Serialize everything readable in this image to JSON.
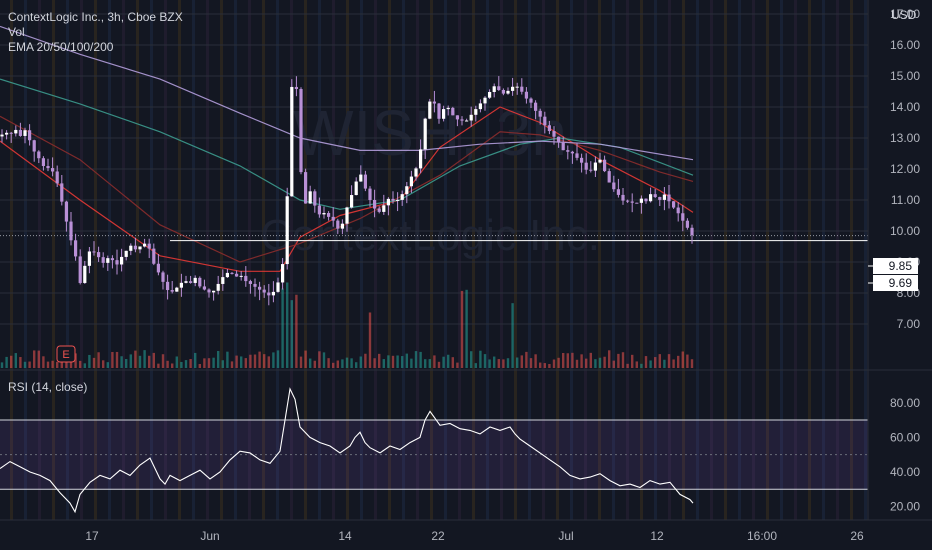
{
  "header": {
    "symbol": "ContextLogic Inc., 3h, Cboe BZX",
    "vol_label": "Vol",
    "ema_label": "EMA 20/50/100/200",
    "currency": "USD"
  },
  "watermark": {
    "ticker": "WISH, 3h",
    "name": "ContextLogic Inc."
  },
  "rsi_header": "RSI (14, close)",
  "price_tags": {
    "current": "9.85",
    "level": "9.69"
  },
  "earnings_marker": "E",
  "colors": {
    "background": "#131722",
    "up": "#26a69a",
    "down": "#ef5350",
    "candle_body": "#b990d6",
    "ema20": "#e53935",
    "ema50": "#8b2c2c",
    "ema100": "#3c9b8e",
    "ema200": "#b39ddb",
    "rsi_line": "#ffffff",
    "rsi_band": "#7e57c2"
  },
  "chart_data": [
    {
      "type": "candlestick",
      "title": "ContextLogic Inc., 3h, Cboe BZX",
      "x_tick_labels": [
        "17",
        "Jun",
        "14",
        "22",
        "Jul",
        "12",
        "16:00",
        "26"
      ],
      "y_ticks": [
        "17.00",
        "16.00",
        "15.00",
        "14.00",
        "13.00",
        "12.00",
        "11.00",
        "10.00",
        "9.00",
        "8.00",
        "7.00"
      ],
      "ylim": [
        6.6,
        17.8
      ],
      "y_unit": "USD",
      "horizontal_level": 9.69,
      "last_price": 9.85,
      "price_path": [
        [
          0,
          13.05
        ],
        [
          5,
          13.2
        ],
        [
          10,
          13.1
        ],
        [
          15,
          13.3
        ],
        [
          20,
          13.05
        ],
        [
          25,
          13.25
        ],
        [
          30,
          12.9
        ],
        [
          35,
          12.5
        ],
        [
          40,
          12.3
        ],
        [
          45,
          12.0
        ],
        [
          50,
          12.05
        ],
        [
          55,
          11.8
        ],
        [
          60,
          11.2
        ],
        [
          65,
          10.5
        ],
        [
          70,
          9.8
        ],
        [
          75,
          9.3
        ],
        [
          80,
          8.3
        ],
        [
          85,
          8.9
        ],
        [
          90,
          9.4
        ],
        [
          95,
          9.3
        ],
        [
          100,
          9.1
        ],
        [
          105,
          8.9
        ],
        [
          110,
          9.3
        ],
        [
          115,
          8.8
        ],
        [
          120,
          9.1
        ],
        [
          125,
          9.3
        ],
        [
          130,
          9.55
        ],
        [
          135,
          9.4
        ],
        [
          140,
          9.5
        ],
        [
          145,
          9.6
        ],
        [
          150,
          9.4
        ],
        [
          155,
          8.8
        ],
        [
          160,
          8.6
        ],
        [
          165,
          8.2
        ],
        [
          170,
          8.0
        ],
        [
          175,
          8.1
        ],
        [
          180,
          8.3
        ],
        [
          185,
          8.4
        ],
        [
          190,
          8.3
        ],
        [
          195,
          8.5
        ],
        [
          200,
          8.2
        ],
        [
          205,
          8.1
        ],
        [
          210,
          8.0
        ],
        [
          215,
          8.1
        ],
        [
          220,
          8.4
        ],
        [
          225,
          8.6
        ],
        [
          230,
          8.7
        ],
        [
          235,
          8.5
        ],
        [
          240,
          8.6
        ],
        [
          245,
          8.4
        ],
        [
          250,
          8.3
        ],
        [
          255,
          8.2
        ],
        [
          260,
          8.1
        ],
        [
          265,
          8.0
        ],
        [
          270,
          7.9
        ],
        [
          275,
          8.1
        ],
        [
          280,
          8.5
        ],
        [
          283,
          9.0
        ],
        [
          286,
          10.2
        ],
        [
          289,
          12.5
        ],
        [
          292,
          14.8
        ],
        [
          295,
          15.7
        ],
        [
          298,
          13.3
        ],
        [
          301,
          11.9
        ],
        [
          304,
          11.1
        ],
        [
          307,
          10.7
        ],
        [
          310,
          11.3
        ],
        [
          315,
          10.8
        ],
        [
          320,
          10.5
        ],
        [
          325,
          10.6
        ],
        [
          330,
          10.4
        ],
        [
          335,
          10.3
        ],
        [
          340,
          9.9
        ],
        [
          345,
          10.6
        ],
        [
          350,
          11.0
        ],
        [
          355,
          11.5
        ],
        [
          360,
          11.9
        ],
        [
          365,
          11.4
        ],
        [
          370,
          11.0
        ],
        [
          375,
          10.7
        ],
        [
          380,
          10.6
        ],
        [
          385,
          10.9
        ],
        [
          390,
          11.1
        ],
        [
          395,
          10.9
        ],
        [
          400,
          11.1
        ],
        [
          405,
          11.3
        ],
        [
          410,
          11.7
        ],
        [
          415,
          11.9
        ],
        [
          420,
          12.5
        ],
        [
          425,
          13.6
        ],
        [
          430,
          14.2
        ],
        [
          435,
          14.1
        ],
        [
          440,
          13.5
        ],
        [
          445,
          14.1
        ],
        [
          450,
          13.9
        ],
        [
          455,
          13.6
        ],
        [
          460,
          13.6
        ],
        [
          465,
          13.5
        ],
        [
          470,
          13.7
        ],
        [
          475,
          13.9
        ],
        [
          480,
          14.1
        ],
        [
          485,
          14.3
        ],
        [
          490,
          14.5
        ],
        [
          495,
          14.7
        ],
        [
          500,
          14.5
        ],
        [
          505,
          14.4
        ],
        [
          510,
          14.6
        ],
        [
          515,
          14.7
        ],
        [
          520,
          14.6
        ],
        [
          525,
          14.3
        ],
        [
          530,
          14.2
        ],
        [
          535,
          13.9
        ],
        [
          540,
          13.7
        ],
        [
          545,
          13.4
        ],
        [
          550,
          13.2
        ],
        [
          555,
          13.0
        ],
        [
          560,
          12.8
        ],
        [
          565,
          12.5
        ],
        [
          570,
          12.6
        ],
        [
          575,
          12.4
        ],
        [
          580,
          12.3
        ],
        [
          585,
          12.0
        ],
        [
          590,
          11.9
        ],
        [
          595,
          12.2
        ],
        [
          600,
          12.3
        ],
        [
          605,
          11.9
        ],
        [
          610,
          11.5
        ],
        [
          615,
          11.3
        ],
        [
          620,
          11.1
        ],
        [
          625,
          10.9
        ],
        [
          630,
          11.0
        ],
        [
          635,
          10.8
        ],
        [
          640,
          11.1
        ],
        [
          645,
          10.9
        ],
        [
          650,
          11.2
        ],
        [
          655,
          11.1
        ],
        [
          660,
          11.0
        ],
        [
          665,
          11.2
        ],
        [
          670,
          10.9
        ],
        [
          675,
          10.7
        ],
        [
          680,
          10.5
        ],
        [
          685,
          10.2
        ],
        [
          690,
          10.0
        ],
        [
          693,
          9.8
        ]
      ],
      "series": [
        {
          "name": "EMA 20",
          "color": "#e53935",
          "values": [
            [
              0,
              12.9
            ],
            [
              80,
              11.0
            ],
            [
              160,
              9.2
            ],
            [
              240,
              8.7
            ],
            [
              280,
              8.7
            ],
            [
              300,
              9.8
            ],
            [
              340,
              10.5
            ],
            [
              400,
              11.0
            ],
            [
              440,
              12.7
            ],
            [
              500,
              14.0
            ],
            [
              540,
              13.5
            ],
            [
              600,
              12.3
            ],
            [
              660,
              11.3
            ],
            [
              693,
              10.6
            ]
          ]
        },
        {
          "name": "EMA 50",
          "color": "#8b2c2c",
          "values": [
            [
              0,
              13.7
            ],
            [
              80,
              12.3
            ],
            [
              160,
              10.2
            ],
            [
              240,
              9.0
            ],
            [
              300,
              9.6
            ],
            [
              360,
              10.4
            ],
            [
              440,
              11.8
            ],
            [
              500,
              13.2
            ],
            [
              540,
              13.1
            ],
            [
              600,
              12.6
            ],
            [
              660,
              11.9
            ],
            [
              693,
              11.6
            ]
          ]
        },
        {
          "name": "EMA 100",
          "color": "#3c9b8e",
          "values": [
            [
              0,
              14.9
            ],
            [
              80,
              14.1
            ],
            [
              160,
              13.2
            ],
            [
              240,
              12.1
            ],
            [
              300,
              11.0
            ],
            [
              340,
              10.7
            ],
            [
              400,
              11.0
            ],
            [
              460,
              12.1
            ],
            [
              520,
              12.8
            ],
            [
              560,
              13.0
            ],
            [
              620,
              12.7
            ],
            [
              693,
              11.8
            ]
          ]
        },
        {
          "name": "EMA 200",
          "color": "#b39ddb",
          "values": [
            [
              0,
              16.6
            ],
            [
              80,
              15.7
            ],
            [
              160,
              14.9
            ],
            [
              240,
              13.8
            ],
            [
              300,
              13.0
            ],
            [
              360,
              12.6
            ],
            [
              420,
              12.6
            ],
            [
              480,
              12.8
            ],
            [
              540,
              12.9
            ],
            [
              600,
              12.8
            ],
            [
              693,
              12.3
            ]
          ]
        }
      ]
    },
    {
      "type": "line",
      "title": "RSI (14, close)",
      "y_ticks": [
        "80.00",
        "60.00",
        "40.00",
        "20.00"
      ],
      "ylim": [
        13,
        92
      ],
      "band": [
        30,
        70
      ],
      "midline": 50,
      "values": [
        [
          0,
          42
        ],
        [
          10,
          46
        ],
        [
          20,
          43
        ],
        [
          30,
          40
        ],
        [
          40,
          38
        ],
        [
          50,
          35
        ],
        [
          60,
          28
        ],
        [
          70,
          22
        ],
        [
          75,
          17
        ],
        [
          80,
          27
        ],
        [
          90,
          34
        ],
        [
          100,
          38
        ],
        [
          110,
          36
        ],
        [
          120,
          41
        ],
        [
          130,
          38
        ],
        [
          140,
          44
        ],
        [
          150,
          48
        ],
        [
          155,
          42
        ],
        [
          160,
          36
        ],
        [
          165,
          33
        ],
        [
          170,
          38
        ],
        [
          180,
          35
        ],
        [
          190,
          38
        ],
        [
          200,
          41
        ],
        [
          210,
          36
        ],
        [
          220,
          40
        ],
        [
          230,
          47
        ],
        [
          240,
          52
        ],
        [
          250,
          51
        ],
        [
          260,
          47
        ],
        [
          270,
          45
        ],
        [
          280,
          52
        ],
        [
          285,
          70
        ],
        [
          290,
          88
        ],
        [
          295,
          82
        ],
        [
          300,
          66
        ],
        [
          310,
          60
        ],
        [
          320,
          57
        ],
        [
          330,
          55
        ],
        [
          340,
          51
        ],
        [
          350,
          55
        ],
        [
          355,
          60
        ],
        [
          360,
          63
        ],
        [
          365,
          57
        ],
        [
          370,
          54
        ],
        [
          380,
          51
        ],
        [
          390,
          55
        ],
        [
          400,
          53
        ],
        [
          410,
          57
        ],
        [
          420,
          60
        ],
        [
          425,
          70
        ],
        [
          430,
          75
        ],
        [
          435,
          71
        ],
        [
          440,
          67
        ],
        [
          450,
          68
        ],
        [
          460,
          65
        ],
        [
          470,
          64
        ],
        [
          480,
          62
        ],
        [
          490,
          66
        ],
        [
          500,
          64
        ],
        [
          510,
          66
        ],
        [
          515,
          62
        ],
        [
          520,
          59
        ],
        [
          530,
          55
        ],
        [
          540,
          51
        ],
        [
          550,
          47
        ],
        [
          560,
          43
        ],
        [
          570,
          38
        ],
        [
          580,
          36
        ],
        [
          590,
          37
        ],
        [
          600,
          39
        ],
        [
          610,
          35
        ],
        [
          620,
          32
        ],
        [
          630,
          33
        ],
        [
          640,
          31
        ],
        [
          650,
          35
        ],
        [
          660,
          33
        ],
        [
          670,
          34
        ],
        [
          680,
          27
        ],
        [
          690,
          24
        ],
        [
          693,
          22
        ]
      ]
    }
  ]
}
